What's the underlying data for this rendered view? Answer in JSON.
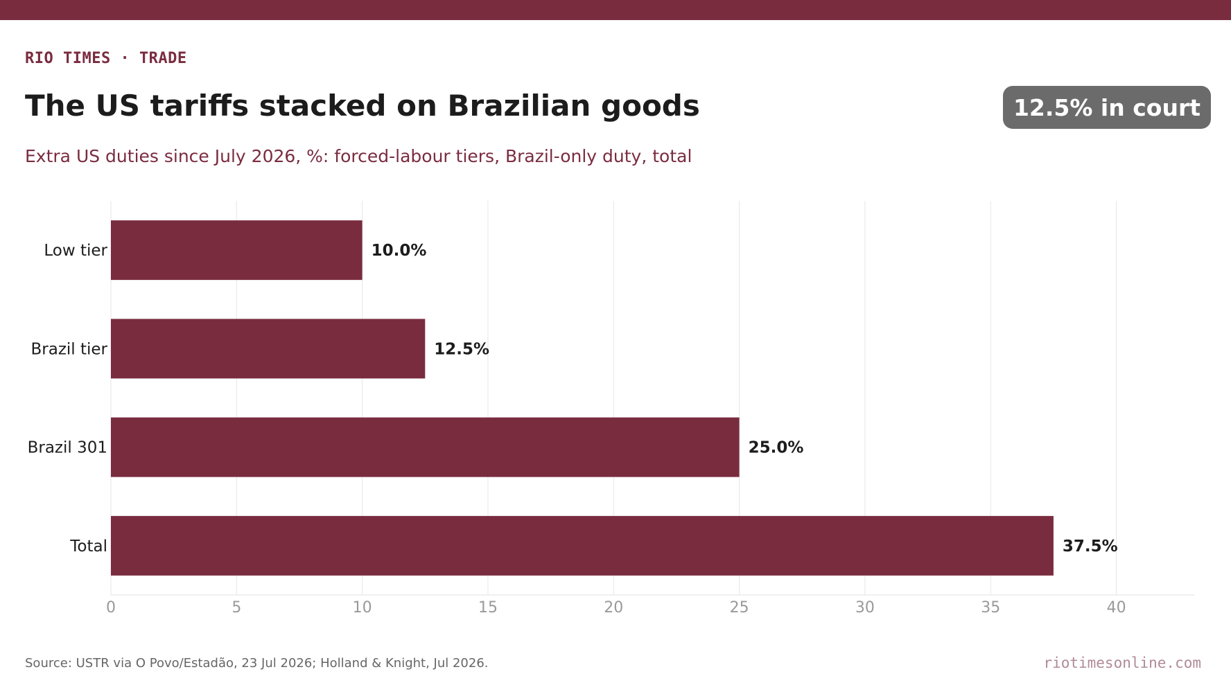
{
  "header": {
    "kicker": "RIO TIMES · TRADE",
    "title": "The US tariffs stacked on Brazilian goods",
    "subtitle": "Extra US duties since July 2026, %: forced-labour tiers, Brazil-only duty, total",
    "badge": "12.5% in court"
  },
  "footer": {
    "source": "Source: USTR via O Povo/Estadão, 23 Jul 2026; Holland & Knight, Jul 2026.",
    "site": "riotimesonline.com"
  },
  "colors": {
    "accent": "#7a2c3f",
    "bar": "#7a2c3f",
    "badge_bg": "#6b6b6b",
    "grid": "#e6e6e6",
    "tick": "#999999"
  },
  "chart_data": {
    "type": "bar",
    "orientation": "horizontal",
    "categories": [
      "Low tier",
      "Brazil tier",
      "Brazil 301",
      "Total"
    ],
    "values": [
      10.0,
      12.5,
      25.0,
      37.5
    ],
    "value_labels": [
      "10.0%",
      "12.5%",
      "25.0%",
      "37.5%"
    ],
    "xticks": [
      "0",
      "5",
      "10",
      "15",
      "20",
      "25",
      "30",
      "35",
      "40"
    ],
    "xlim": [
      0,
      43.1
    ],
    "xlabel": "",
    "ylabel": "",
    "grid": "vertical"
  }
}
